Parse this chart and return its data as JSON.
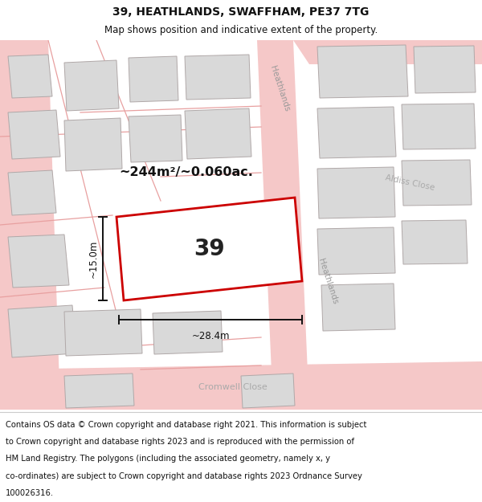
{
  "title": "39, HEATHLANDS, SWAFFHAM, PE37 7TG",
  "subtitle": "Map shows position and indicative extent of the property.",
  "bg_color": "#f2f2f2",
  "map_bg_color": "#efefef",
  "building_fill": "#d9d9d9",
  "building_edge": "#b0a8a8",
  "road_fill": "#f5c8c8",
  "road_edge": "#e8a0a0",
  "red_outline": "#cc0000",
  "area_text": "~244m²/~0.060ac.",
  "number_text": "39",
  "width_text": "~28.4m",
  "height_text": "~15.0m",
  "street_heathlands_top": "Heathlands",
  "street_heathlands_right": "Heathlands",
  "street_aldiss": "Aldiss Close",
  "street_cromwell": "Cromwell Close",
  "title_fontsize": 10,
  "subtitle_fontsize": 8.5,
  "footer_fontsize": 7.2,
  "footer_lines": [
    "Contains OS data © Crown copyright and database right 2021. This information is subject",
    "to Crown copyright and database rights 2023 and is reproduced with the permission of",
    "HM Land Registry. The polygons (including the associated geometry, namely x, y",
    "co-ordinates) are subject to Crown copyright and database rights 2023 Ordnance Survey",
    "100026316."
  ]
}
